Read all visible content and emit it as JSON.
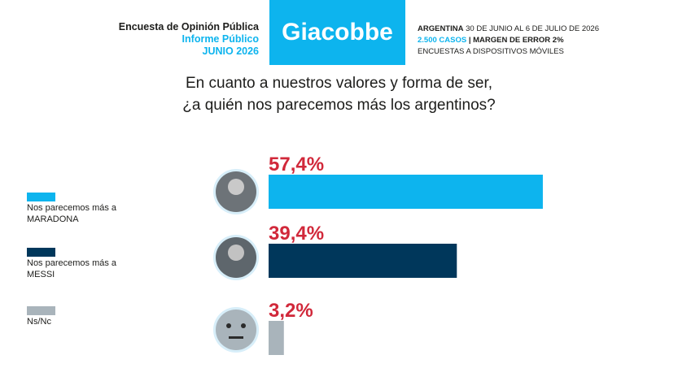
{
  "header": {
    "left": [
      "Encuesta de Opinión Pública",
      "Informe Público",
      "JUNIO 2026"
    ],
    "brand": "Giacobbe",
    "right_line1": [
      "ARGENTINA",
      "30 DE JUNIO AL 6 DE JULIO DE 2026"
    ],
    "right_line2": [
      "2.500 CASOS",
      "| MARGEN DE ERROR 2%"
    ],
    "right_line3": "ENCUESTAS A DISPOSITIVOS MÓVILES"
  },
  "chart_data": {
    "type": "bar",
    "orientation": "horizontal",
    "title": [
      "En cuanto a nuestros valores y forma de ser,",
      "¿a quién nos parecemos más los argentinos?"
    ],
    "categories": [
      "Nos parecemos más a MARADONA",
      "Nos parecemos más a MESSI",
      "Ns/Nc"
    ],
    "values": [
      57.4,
      39.4,
      3.2
    ],
    "value_labels": [
      "57,4%",
      "39,4%",
      "3,2%"
    ],
    "colors": [
      "#0db4ee",
      "#00375b",
      "#a9b4bb"
    ],
    "label_color": "#d1283a"
  }
}
